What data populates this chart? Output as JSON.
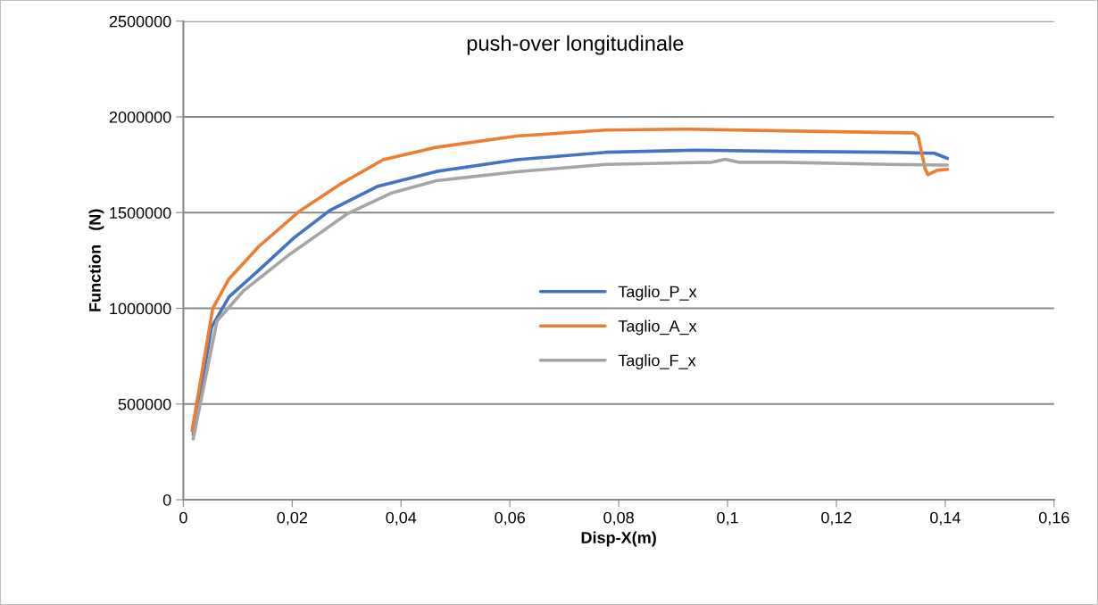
{
  "chart_data": {
    "type": "line",
    "title": "push-over longitudinale",
    "xlabel": "Disp-X(m)",
    "ylabel": "Function   (N)",
    "xlim": [
      0,
      0.16
    ],
    "ylim": [
      0,
      2500000
    ],
    "xticks": [
      0,
      {
        "value": 0.02,
        "label": "0,02"
      },
      {
        "value": 0.04,
        "label": "0,04"
      },
      {
        "value": 0.06,
        "label": "0,06"
      },
      {
        "value": 0.08,
        "label": "0,08"
      },
      {
        "value": 0.1,
        "label": "0,1"
      },
      {
        "value": 0.12,
        "label": "0,12"
      },
      {
        "value": 0.14,
        "label": "0,14"
      },
      {
        "value": 0.16,
        "label": "0,16"
      }
    ],
    "yticks": [
      0,
      500000,
      1000000,
      1500000,
      2000000,
      2500000
    ],
    "grid": "y",
    "legend": "center",
    "marker": "none",
    "line_style": "solid",
    "series": [
      {
        "name": "Taglio_P_x",
        "color": "#4472c4",
        "x": [
          0.0018,
          0.0052,
          0.0084,
          0.0139,
          0.0204,
          0.0269,
          0.0356,
          0.0465,
          0.0612,
          0.0776,
          0.0939,
          0.11,
          0.1298,
          0.138,
          0.1404
        ],
        "values": [
          341000,
          903000,
          1060000,
          1200000,
          1370000,
          1511000,
          1636000,
          1715000,
          1776000,
          1815000,
          1826000,
          1820000,
          1815000,
          1810000,
          1783000
        ]
      },
      {
        "name": "Taglio_A_x",
        "color": "#ed7d31",
        "x": [
          0.0016,
          0.0054,
          0.0084,
          0.0139,
          0.0215,
          0.029,
          0.0367,
          0.0465,
          0.0612,
          0.0776,
          0.0927,
          0.11,
          0.1342,
          0.135,
          0.1363,
          0.1368,
          0.1385,
          0.1404
        ],
        "values": [
          360000,
          1000000,
          1154000,
          1324000,
          1511000,
          1651000,
          1776000,
          1841000,
          1900000,
          1931000,
          1936000,
          1927000,
          1916000,
          1900000,
          1729000,
          1698000,
          1721000,
          1726000
        ]
      },
      {
        "name": "Taglio_F_x",
        "color": "#a5a5a5",
        "x": [
          0.0018,
          0.0062,
          0.011,
          0.0193,
          0.0302,
          0.0384,
          0.0465,
          0.0612,
          0.0776,
          0.0971,
          0.0996,
          0.102,
          0.11,
          0.1298,
          0.1404
        ],
        "values": [
          318000,
          935000,
          1090000,
          1277000,
          1495000,
          1604000,
          1667000,
          1713000,
          1752000,
          1763000,
          1779000,
          1763000,
          1763000,
          1752000,
          1748000
        ]
      }
    ]
  }
}
